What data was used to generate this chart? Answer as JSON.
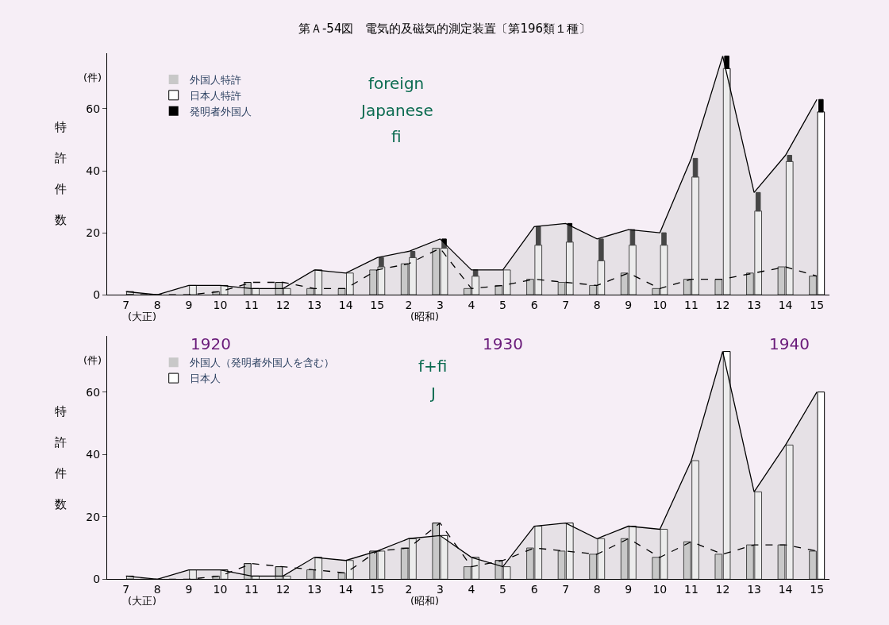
{
  "chart_data": [
    {
      "type": "bar",
      "title": "第Ａ-54図　電気的及磁気的測定装置〔第196類１種〕",
      "ylabel": "特許件数",
      "legend": "top left",
      "grid": false,
      "categories": [
        "7",
        "8",
        "9",
        "10",
        "11",
        "12",
        "13",
        "14",
        "15",
        "2",
        "3",
        "4",
        "5",
        "6",
        "7",
        "8",
        "9",
        "10",
        "11",
        "12",
        "13",
        "14",
        "15"
      ],
      "ylim": [
        0,
        78
      ],
      "yticks": [
        0,
        20,
        40,
        60
      ],
      "annotations": [
        "(件)",
        "(大正)",
        "(昭和)",
        "foreign",
        "fi",
        "Japanese",
        "1920",
        "1930",
        "1940"
      ],
      "series": [
        {
          "name": "外国人特許",
          "color": "#c8c8c8",
          "values": [
            0,
            0,
            0,
            1,
            4,
            4,
            2,
            2,
            8,
            10,
            15,
            2,
            3,
            5,
            4,
            3,
            7,
            2,
            5,
            5,
            7,
            9,
            6
          ]
        },
        {
          "name": "日本人特許",
          "color": "#ffffff",
          "values": [
            1,
            0,
            3,
            3,
            2,
            2,
            8,
            7,
            9,
            12,
            15,
            6,
            8,
            16,
            17,
            11,
            16,
            16,
            38,
            73,
            27,
            43,
            59
          ]
        },
        {
          "name": "発明者外国人",
          "color": "#000000",
          "base": [
            null,
            null,
            null,
            null,
            null,
            null,
            null,
            null,
            9,
            12,
            15,
            6,
            null,
            16,
            17,
            11,
            16,
            16,
            38,
            73,
            27,
            43,
            59
          ],
          "values": [
            0,
            0,
            0,
            0,
            0,
            0,
            0,
            0,
            3,
            2,
            3,
            2,
            0,
            6,
            6,
            7,
            5,
            4,
            6,
            4,
            6,
            2,
            4
          ]
        },
        {
          "type": "area",
          "color": "#000000",
          "line_style": "solid",
          "values": [
            1,
            0,
            3,
            3,
            2,
            2,
            8,
            7,
            12,
            14,
            18,
            8,
            8,
            22,
            23,
            18,
            21,
            20,
            44,
            77,
            33,
            45,
            63
          ]
        },
        {
          "type": "line",
          "color": "#000000",
          "line_style": "dashed",
          "values": [
            0,
            0,
            0,
            1,
            4,
            4,
            2,
            2,
            8,
            10,
            15,
            2,
            3,
            5,
            4,
            3,
            7,
            2,
            5,
            5,
            7,
            9,
            6
          ]
        }
      ]
    },
    {
      "type": "bar",
      "ylabel": "特許件数",
      "legend": "top left",
      "grid": false,
      "categories": [
        "7",
        "8",
        "9",
        "10",
        "11",
        "12",
        "13",
        "14",
        "15",
        "2",
        "3",
        "4",
        "5",
        "6",
        "7",
        "8",
        "9",
        "10",
        "11",
        "12",
        "13",
        "14",
        "15"
      ],
      "ylim": [
        0,
        78
      ],
      "yticks": [
        0,
        20,
        40,
        60
      ],
      "annotations": [
        "(件)",
        "(大正)",
        "(昭和)",
        "f+fi",
        "J"
      ],
      "series": [
        {
          "name": "外国人（発明者外国人を含む）",
          "color": "#c8c8c8",
          "values": [
            0,
            0,
            0,
            1,
            5,
            4,
            3,
            2,
            9,
            10,
            18,
            4,
            6,
            10,
            9,
            8,
            13,
            7,
            12,
            8,
            11,
            11,
            9
          ]
        },
        {
          "name": "日本人",
          "color": "#ffffff",
          "values": [
            1,
            0,
            3,
            3,
            1,
            1,
            7,
            6,
            9,
            13,
            14,
            7,
            4,
            17,
            18,
            13,
            17,
            16,
            38,
            73,
            28,
            43,
            60
          ]
        },
        {
          "type": "area",
          "color": "#000000",
          "line_style": "solid",
          "values": [
            1,
            0,
            3,
            3,
            1,
            1,
            7,
            6,
            9,
            13,
            14,
            7,
            4,
            17,
            18,
            13,
            17,
            16,
            38,
            73,
            28,
            43,
            60
          ]
        },
        {
          "type": "line",
          "color": "#000000",
          "line_style": "dashed",
          "values": [
            0,
            0,
            0,
            1,
            5,
            4,
            3,
            2,
            9,
            10,
            18,
            4,
            6,
            10,
            9,
            8,
            13,
            7,
            12,
            8,
            11,
            11,
            9
          ]
        }
      ]
    }
  ]
}
